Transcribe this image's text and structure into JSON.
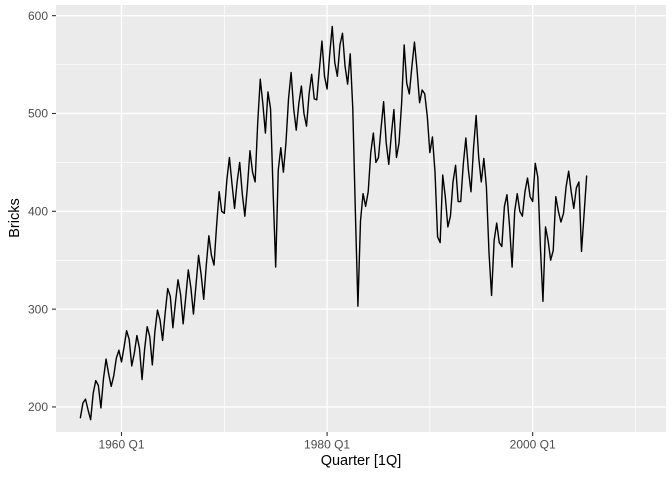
{
  "chart_data": {
    "type": "line",
    "title": "",
    "xlabel": "Quarter [1Q]",
    "ylabel": "Bricks",
    "legend": "none",
    "grid": "on",
    "panel_style": "ggplot2-grey",
    "series_name": "Bricks",
    "x_start": "1956 Q1",
    "x_end": "2005 Q2",
    "x_frequency": "quarterly",
    "xlim": [
      1953.63,
      2012.97
    ],
    "ylim": [
      174.4,
      610.9
    ],
    "x_ticks": [
      {
        "label": "1960 Q1",
        "t": 1960.0
      },
      {
        "label": "1980 Q1",
        "t": 1980.0
      },
      {
        "label": "2000 Q1",
        "t": 2000.0
      }
    ],
    "y_ticks": [
      {
        "label": "200",
        "v": 200
      },
      {
        "label": "300",
        "v": 300
      },
      {
        "label": "400",
        "v": 400
      },
      {
        "label": "500",
        "v": 500
      },
      {
        "label": "600",
        "v": 600
      }
    ],
    "x_minor": [
      1970.0,
      1990.0,
      2010.0
    ],
    "y_minor": [
      250,
      350,
      450,
      550
    ],
    "values": [
      189,
      204,
      208,
      197,
      187,
      214,
      227,
      222,
      199,
      229,
      249,
      234,
      221,
      232,
      250,
      258,
      246,
      261,
      278,
      269,
      242,
      255,
      273,
      260,
      228,
      259,
      282,
      272,
      243,
      277,
      299,
      289,
      268,
      296,
      321,
      313,
      281,
      307,
      330,
      315,
      285,
      312,
      340,
      322,
      295,
      325,
      355,
      335,
      310,
      345,
      375,
      355,
      345,
      385,
      420,
      400,
      398,
      432,
      455,
      428,
      403,
      430,
      450,
      418,
      395,
      425,
      462,
      440,
      430,
      490,
      535,
      510,
      480,
      522,
      505,
      420,
      343,
      442,
      465,
      440,
      470,
      515,
      542,
      505,
      483,
      510,
      528,
      500,
      487,
      520,
      540,
      515,
      514,
      545,
      574,
      538,
      525,
      560,
      589,
      552,
      538,
      570,
      582,
      548,
      530,
      561,
      505,
      400,
      303,
      390,
      418,
      405,
      420,
      460,
      480,
      450,
      455,
      485,
      512,
      470,
      448,
      478,
      504,
      455,
      470,
      510,
      570,
      531,
      520,
      548,
      573,
      545,
      511,
      524,
      520,
      497,
      460,
      476,
      440,
      374,
      368,
      437,
      415,
      384,
      395,
      430,
      447,
      410,
      410,
      448,
      475,
      442,
      420,
      465,
      498,
      455,
      430,
      454,
      425,
      358,
      314,
      370,
      388,
      368,
      364,
      405,
      417,
      385,
      343,
      400,
      418,
      400,
      395,
      420,
      434,
      415,
      410,
      449,
      435,
      364,
      308,
      384,
      370,
      350,
      360,
      415,
      400,
      389,
      398,
      425,
      441,
      420,
      403,
      424,
      430,
      359,
      397,
      436
    ]
  },
  "colors": {
    "background": "#FFFFFF",
    "panel": "#EBEBEB",
    "grid_major": "#FFFFFF",
    "grid_minor": "#FFFFFF",
    "series_line": "#000000",
    "tick_label": "#4D4D4D",
    "axis_title": "#000000",
    "tick_mark": "#333333"
  }
}
